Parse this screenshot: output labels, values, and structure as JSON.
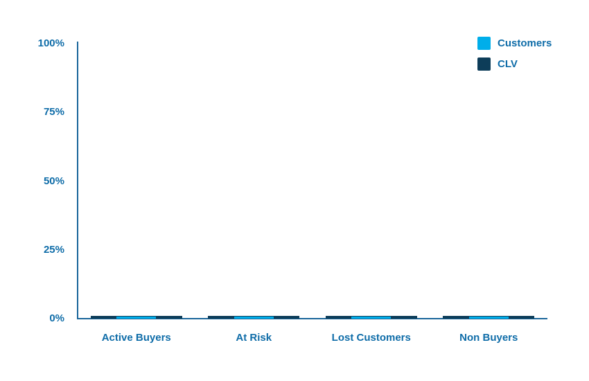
{
  "chart_data": {
    "type": "bar",
    "title": "",
    "xlabel": "",
    "ylabel": "",
    "categories": [
      "Active Buyers",
      "At Risk",
      "Lost Customers",
      "Non Buyers"
    ],
    "series": [
      {
        "name": "Customers",
        "color": "#00aeea",
        "values": [
          0.7,
          0.7,
          0.7,
          0.7
        ]
      },
      {
        "name": "CLV",
        "color": "#0d3d59",
        "values": [
          1,
          1,
          1,
          1
        ]
      }
    ],
    "ylim": [
      0,
      100
    ],
    "yticks": [
      {
        "value": 100,
        "label": "100%"
      },
      {
        "value": 75,
        "label": "75%"
      },
      {
        "value": 50,
        "label": "50%"
      },
      {
        "value": 25,
        "label": "25%"
      },
      {
        "value": 0,
        "label": "0%"
      }
    ],
    "grid": false,
    "legend_position": "top-right",
    "bar_style": "overlapped-centered: wide dark CLV bar behind, narrower light Customers bar in front, all values near zero"
  },
  "colors": {
    "text": "#0e6ca8",
    "axis": "#18659a",
    "customers": "#00aeea",
    "clv": "#0d3d59",
    "background": "#ffffff"
  }
}
